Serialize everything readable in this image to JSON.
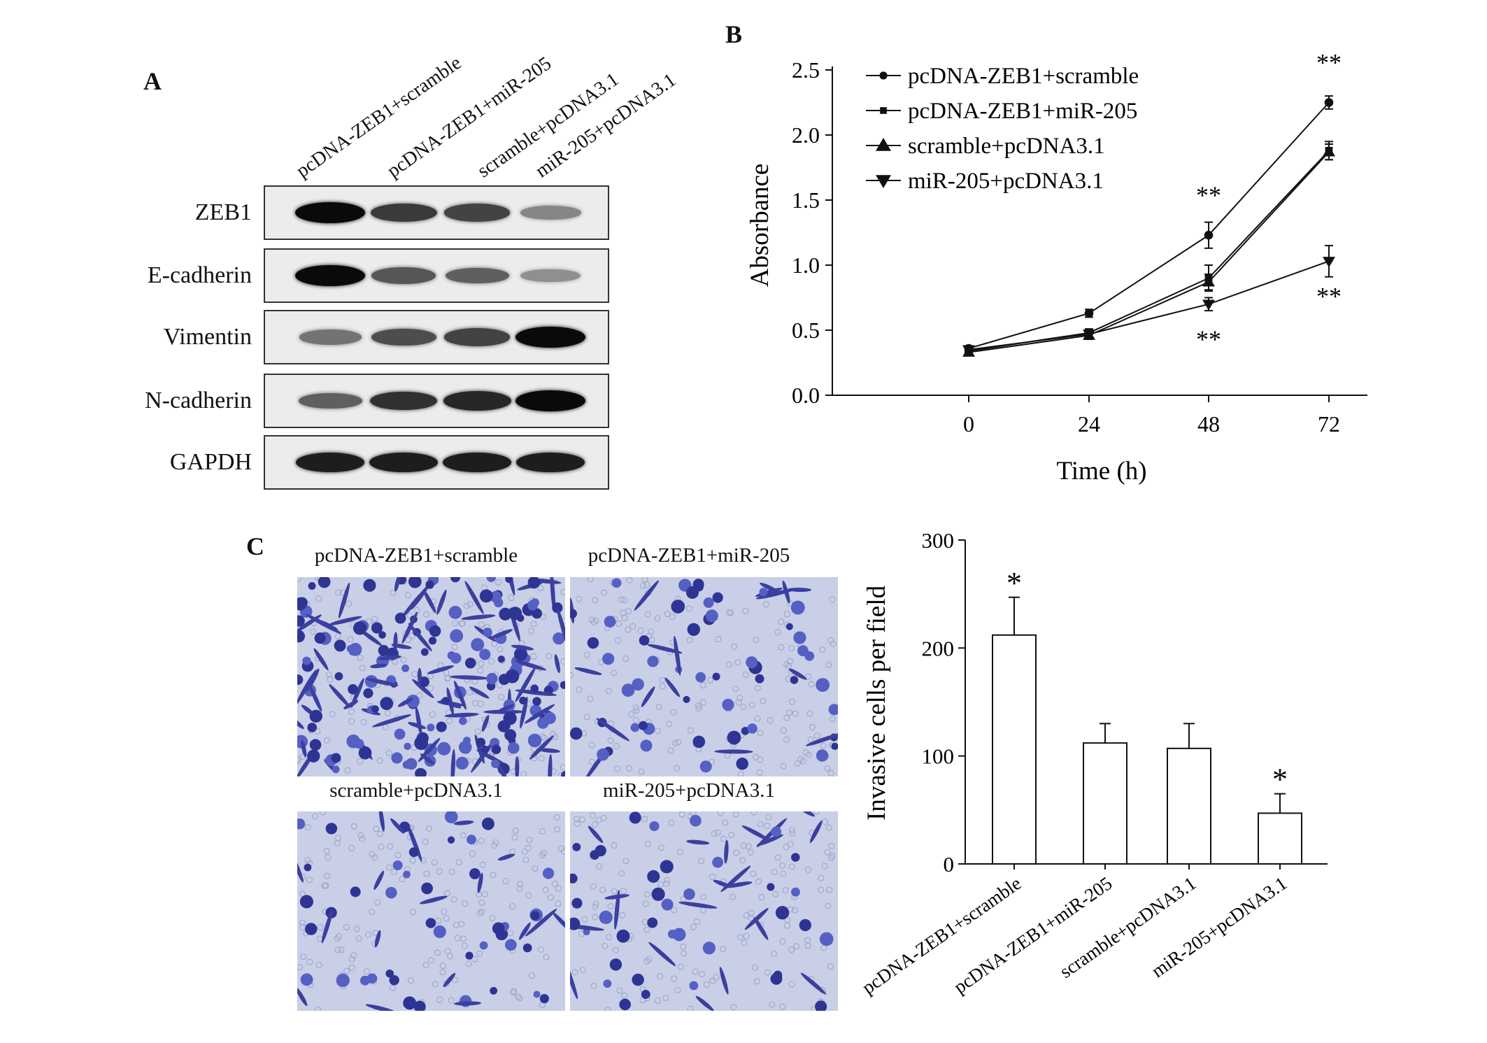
{
  "panels": {
    "a": "A",
    "b": "B",
    "c": "C"
  },
  "blot": {
    "lanes": [
      "pcDNA-ZEB1+scramble",
      "pcDNA-ZEB1+miR-205",
      "scramble+pcDNA3.1",
      "miR-205+pcDNA3.1"
    ],
    "proteins": [
      {
        "name": "ZEB1",
        "intensity": [
          1.0,
          0.75,
          0.7,
          0.35
        ]
      },
      {
        "name": "E-cadherin",
        "intensity": [
          1.0,
          0.6,
          0.55,
          0.3
        ]
      },
      {
        "name": "Vimentin",
        "intensity": [
          0.45,
          0.65,
          0.7,
          1.0
        ]
      },
      {
        "name": "N-cadherin",
        "intensity": [
          0.55,
          0.8,
          0.85,
          1.0
        ]
      },
      {
        "name": "GAPDH",
        "intensity": [
          0.9,
          0.9,
          0.9,
          0.9
        ]
      }
    ]
  },
  "micrographs": {
    "titles": [
      "pcDNA-ZEB1+scramble",
      "pcDNA-ZEB1+miR-205",
      "scramble+pcDNA3.1",
      "miR-205+pcDNA3.1"
    ]
  },
  "chart_data": [
    {
      "type": "line",
      "xlabel": "Time (h)",
      "ylabel": "Absorbance",
      "x": [
        0,
        24,
        48,
        72
      ],
      "xticks": [
        "0",
        "24",
        "48",
        "72"
      ],
      "ylim": [
        0.0,
        2.5
      ],
      "yticks": [
        "0.0",
        "0.5",
        "1.0",
        "1.5",
        "2.0",
        "2.5"
      ],
      "legend_position": "top-left",
      "series": [
        {
          "name": "pcDNA-ZEB1+scramble",
          "marker": "circle",
          "values": [
            0.36,
            0.63,
            1.23,
            2.25
          ],
          "errors": [
            0.02,
            0.03,
            0.1,
            0.05
          ]
        },
        {
          "name": "pcDNA-ZEB1+miR-205",
          "marker": "square",
          "values": [
            0.34,
            0.48,
            0.9,
            1.88
          ],
          "errors": [
            0.02,
            0.03,
            0.1,
            0.07
          ]
        },
        {
          "name": "scramble+pcDNA3.1",
          "marker": "triangle-up",
          "values": [
            0.33,
            0.46,
            0.87,
            1.87
          ],
          "errors": [
            0.02,
            0.03,
            0.06,
            0.06
          ]
        },
        {
          "name": "miR-205+pcDNA3.1",
          "marker": "triangle-down",
          "values": [
            0.35,
            0.47,
            0.7,
            1.03
          ],
          "errors": [
            0.02,
            0.03,
            0.05,
            0.12
          ]
        }
      ],
      "annotations": [
        {
          "x": 48,
          "y": 1.23,
          "text": "**",
          "side": "above"
        },
        {
          "x": 72,
          "y": 2.25,
          "text": "**",
          "side": "above"
        },
        {
          "x": 48,
          "y": 0.7,
          "text": "**",
          "side": "below"
        },
        {
          "x": 72,
          "y": 1.03,
          "text": "**",
          "side": "below"
        }
      ]
    },
    {
      "type": "bar",
      "ylabel": "Invasive cells per field",
      "categories": [
        "pcDNA-ZEB1+scramble",
        "pcDNA-ZEB1+miR-205",
        "scramble+pcDNA3.1",
        "miR-205+pcDNA3.1"
      ],
      "values": [
        212,
        112,
        107,
        47
      ],
      "errors": [
        35,
        18,
        23,
        18
      ],
      "ylim": [
        0,
        300
      ],
      "yticks": [
        "0",
        "100",
        "200",
        "300"
      ],
      "annotations": [
        {
          "category": 0,
          "text": "*"
        },
        {
          "category": 3,
          "text": "*"
        }
      ]
    }
  ]
}
